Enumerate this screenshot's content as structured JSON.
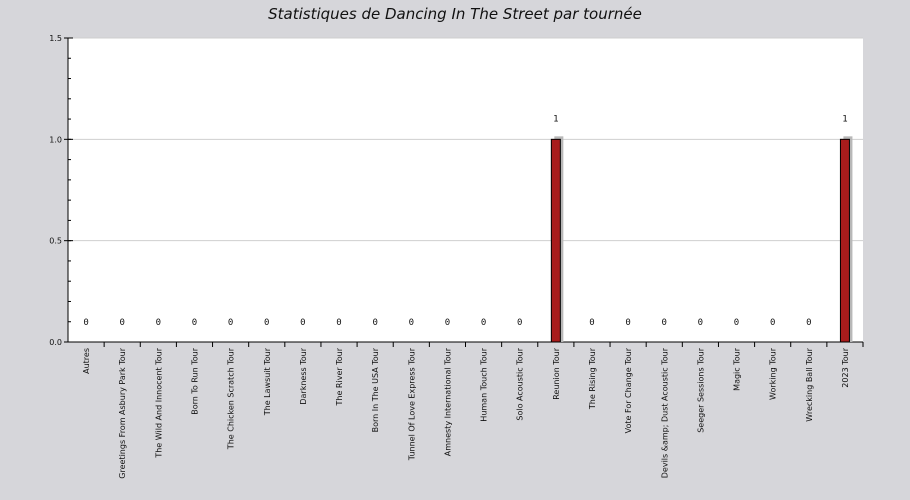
{
  "chart_data": {
    "type": "bar",
    "title": "Statistiques de Dancing In The Street par tournée",
    "xlabel": "",
    "ylabel": "",
    "ylim": [
      0,
      1.5
    ],
    "yticks": [
      "0.0",
      "0.5",
      "1.0",
      "1.5"
    ],
    "ytick_values": [
      0,
      0.5,
      1.0,
      1.5
    ],
    "grid": true,
    "legend": "none",
    "bar_color": "#a81c1c",
    "plot_background": "#ffffff",
    "categories": [
      "Autres",
      "Greetings From Asbury Park Tour",
      "The Wild And Innocent Tour",
      "Born To Run Tour",
      "The Chicken Scratch Tour",
      "The Lawsuit Tour",
      "Darkness Tour",
      "The River Tour",
      "Born In The USA Tour",
      "Tunnel Of Love Express Tour",
      "Amnesty International Tour",
      "Human Touch Tour",
      "Solo Acoustic Tour",
      "Reunion Tour",
      "The Rising Tour",
      "Vote For Change Tour",
      "Devils &amp; Dust Acoustic Tour",
      "Seeger Sessions Tour",
      "Magic Tour",
      "Working Tour",
      "Wrecking Ball Tour",
      "2023 Tour"
    ],
    "values": [
      0,
      0,
      0,
      0,
      0,
      0,
      0,
      0,
      0,
      0,
      0,
      0,
      0,
      1,
      0,
      0,
      0,
      0,
      0,
      0,
      0,
      1
    ],
    "data_labels": [
      "0",
      "0",
      "0",
      "0",
      "0",
      "0",
      "0",
      "0",
      "0",
      "0",
      "0",
      "0",
      "0",
      "1",
      "0",
      "0",
      "0",
      "0",
      "0",
      "0",
      "0",
      "1"
    ]
  }
}
